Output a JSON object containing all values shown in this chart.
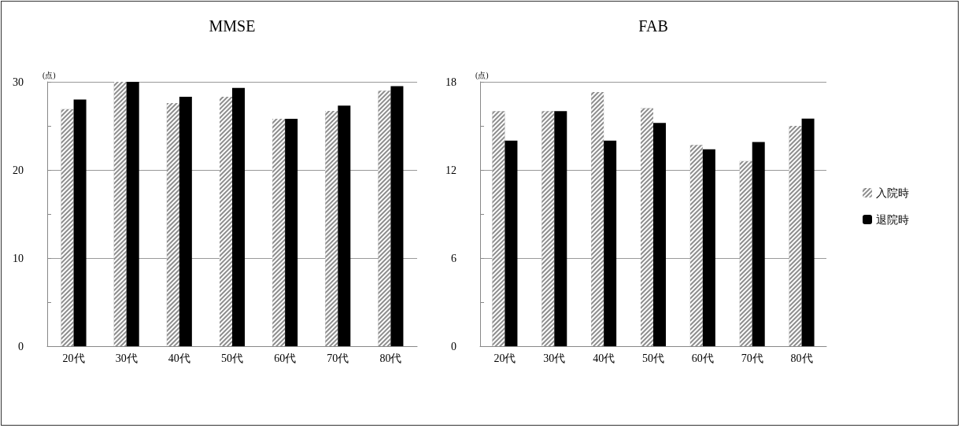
{
  "chart_data": [
    {
      "type": "bar",
      "title": "MMSE",
      "ylabel": "(点)",
      "categories": [
        "20代",
        "30代",
        "40代",
        "50代",
        "60代",
        "70代",
        "80代"
      ],
      "series": [
        {
          "color": "#8c8c8c",
          "values": [
            26.9,
            30,
            27.6,
            28.3,
            25.8,
            26.7,
            29.0
          ]
        },
        {
          "color": "#000000",
          "values": [
            28.0,
            30,
            28.3,
            29.3,
            25.8,
            27.3,
            29.5
          ]
        }
      ],
      "ylim": [
        0,
        30
      ],
      "yticks": [
        0,
        {
          "value": 5,
          "label": null
        },
        10,
        {
          "value": 15,
          "label": null
        },
        20,
        {
          "value": 25,
          "label": null
        },
        30
      ],
      "grid": "y",
      "legend": false
    },
    {
      "type": "bar",
      "title": "FAB",
      "ylabel": "(点)",
      "categories": [
        "20代",
        "30代",
        "40代",
        "50代",
        "60代",
        "70代",
        "80代"
      ],
      "series": [
        {
          "name": "入院時",
          "color": "#8c8c8c",
          "values": [
            16.0,
            16.0,
            17.3,
            16.2,
            13.7,
            12.6,
            15.0
          ]
        },
        {
          "name": "退院時",
          "color": "#000000",
          "values": [
            14.0,
            16.0,
            14.0,
            15.2,
            13.4,
            13.9,
            15.5
          ]
        }
      ],
      "ylim": [
        0,
        18
      ],
      "yticks": [
        0,
        {
          "value": 3,
          "label": null
        },
        6,
        {
          "value": 9,
          "label": null
        },
        12,
        {
          "value": 15,
          "label": null
        },
        18
      ],
      "grid": "y",
      "legend": "right"
    }
  ]
}
